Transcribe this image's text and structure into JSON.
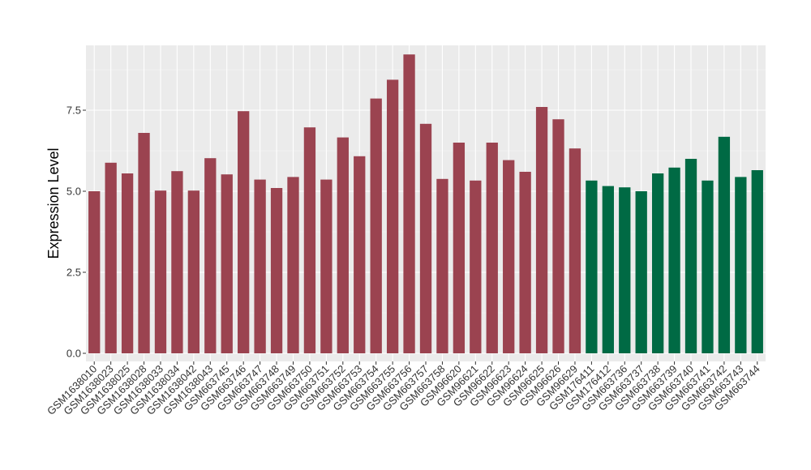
{
  "chart_data": {
    "type": "bar",
    "title": "",
    "xlabel": "",
    "ylabel": "Expression Level",
    "ylim": [
      -0.25,
      9.5
    ],
    "yticks": [
      0.0,
      2.5,
      5.0,
      7.5
    ],
    "ytick_labels": [
      "0.0",
      "2.5",
      "5.0",
      "7.5"
    ],
    "grid": true,
    "legend": "none",
    "groups": [
      {
        "color": "#9B4350"
      },
      {
        "color": "#006A44"
      }
    ],
    "categories": [
      "GSM1638010",
      "GSM1638023",
      "GSM1638025",
      "GSM1638028",
      "GSM1638033",
      "GSM1638034",
      "GSM1638042",
      "GSM1638043",
      "GSM663745",
      "GSM663746",
      "GSM663747",
      "GSM663748",
      "GSM663749",
      "GSM663750",
      "GSM663751",
      "GSM663752",
      "GSM663753",
      "GSM663754",
      "GSM663755",
      "GSM663756",
      "GSM663757",
      "GSM663758",
      "GSM96620",
      "GSM96621",
      "GSM96622",
      "GSM96623",
      "GSM96624",
      "GSM96625",
      "GSM96626",
      "GSM96629",
      "GSM176411",
      "GSM176412",
      "GSM663736",
      "GSM663737",
      "GSM663738",
      "GSM663739",
      "GSM663740",
      "GSM663741",
      "GSM663742",
      "GSM663743",
      "GSM663744"
    ],
    "values": [
      5.0,
      5.88,
      5.55,
      6.8,
      5.02,
      5.62,
      5.02,
      6.02,
      5.52,
      7.47,
      5.36,
      5.1,
      5.44,
      6.97,
      5.36,
      6.66,
      6.08,
      7.86,
      8.44,
      9.22,
      7.08,
      5.38,
      6.5,
      5.33,
      6.5,
      5.96,
      5.6,
      7.6,
      7.22,
      6.32,
      5.33,
      5.16,
      5.12,
      5.0,
      5.55,
      5.73,
      6.0,
      5.33,
      6.68,
      5.44,
      5.65
    ],
    "group_index": [
      0,
      0,
      0,
      0,
      0,
      0,
      0,
      0,
      0,
      0,
      0,
      0,
      0,
      0,
      0,
      0,
      0,
      0,
      0,
      0,
      0,
      0,
      0,
      0,
      0,
      0,
      0,
      0,
      0,
      0,
      1,
      1,
      1,
      1,
      1,
      1,
      1,
      1,
      1,
      1,
      1
    ]
  }
}
